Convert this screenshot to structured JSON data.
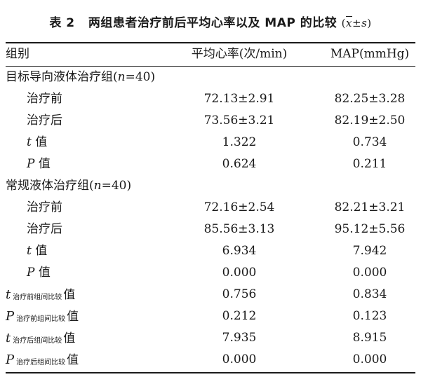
{
  "caption": {
    "label": "表 2",
    "title": "两组患者治疗前后平均心率以及 MAP 的比较",
    "formula_x": "x",
    "formula_pm": "±",
    "formula_s": "s"
  },
  "header": {
    "col0": "组别",
    "col1": "平均心率(次/min)",
    "col2": "MAP(mmHg)"
  },
  "rows": [
    {
      "c0": "目标导向液体治疗组(",
      "c0_n": "n",
      "c0_tail": "=40)",
      "c1": "",
      "c2": ""
    },
    {
      "c0": "治疗前",
      "c1": "72.13±2.91",
      "c2": "82.25±3.28"
    },
    {
      "c0": "治疗后",
      "c1": "73.56±3.21",
      "c2": "82.19±2.50"
    },
    {
      "c0_sym": "t",
      "c0": "值",
      "c1": "1.322",
      "c2": "0.734"
    },
    {
      "c0_sym": "P",
      "c0": "值",
      "c1": "0.624",
      "c2": "0.211"
    },
    {
      "c0": "常规液体治疗组(",
      "c0_n": "n",
      "c0_tail": "=40)",
      "c1": "",
      "c2": ""
    },
    {
      "c0": "治疗前",
      "c1": "72.16±2.54",
      "c2": "82.21±3.21"
    },
    {
      "c0": "治疗后",
      "c1": "85.56±3.13",
      "c2": "95.12±5.56"
    },
    {
      "c0_sym": "t",
      "c0": "值",
      "c1": "6.934",
      "c2": "7.942"
    },
    {
      "c0_sym": "P",
      "c0": "值",
      "c1": "0.000",
      "c2": "0.000"
    },
    {
      "c0_sym": "t",
      "c0_sub": "治疗前组间比较",
      "c0": "值",
      "c1": "0.756",
      "c2": "0.834"
    },
    {
      "c0_sym": "P",
      "c0_sub": "治疗前组间比较",
      "c0": "值",
      "c1": "0.212",
      "c2": "0.123"
    },
    {
      "c0_sym": "t",
      "c0_sub": "治疗后组间比较",
      "c0": "值",
      "c1": "7.935",
      "c2": "8.915"
    },
    {
      "c0_sym": "P",
      "c0_sub": "治疗后组间比较",
      "c0": "值",
      "c1": "0.000",
      "c2": "0.000"
    }
  ]
}
